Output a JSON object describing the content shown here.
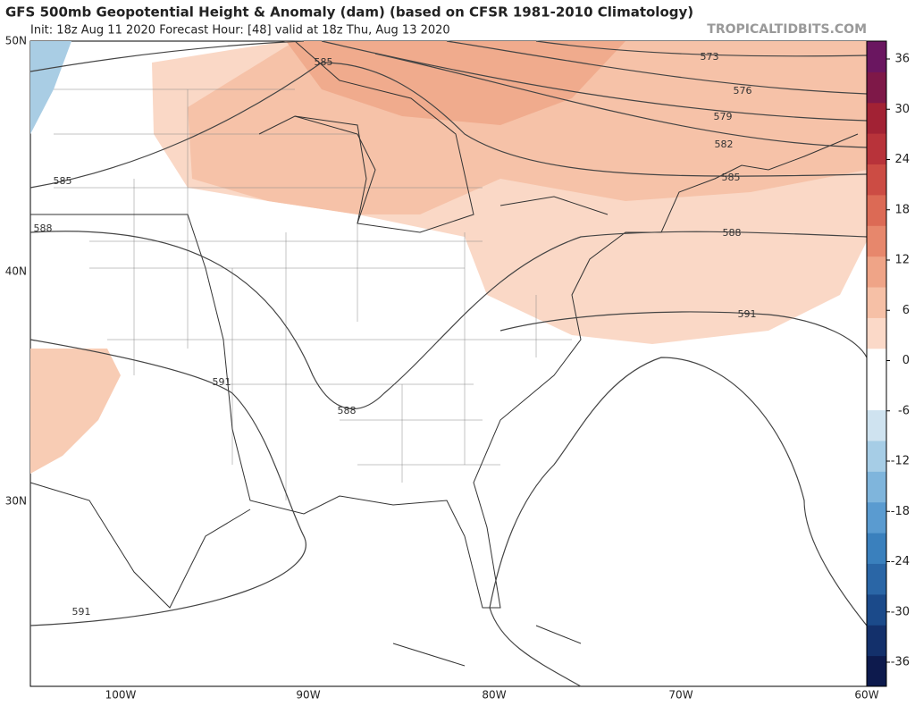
{
  "header": {
    "title": "GFS 500mb Geopotential Height & Anomaly (dam) (based on CFSR 1981-2010 Climatology)",
    "subtitle": "Init: 18z Aug 11 2020   Forecast Hour: [48]   valid at 18z Thu, Aug 13 2020",
    "watermark": "TROPICALTIDBITS.COM"
  },
  "map": {
    "lat_labels": [
      "50N",
      "40N",
      "30N"
    ],
    "lon_labels": [
      "100W",
      "90W",
      "80W",
      "70W",
      "60W"
    ],
    "contour_labels": [
      "573",
      "576",
      "579",
      "582",
      "585",
      "588",
      "591",
      "585",
      "585",
      "588",
      "591",
      "588",
      "591"
    ]
  },
  "colorbar": {
    "ticks": [
      36,
      30,
      24,
      18,
      12,
      6,
      0,
      -6,
      -12,
      -18,
      -24,
      -30,
      -36
    ],
    "colors": [
      "#0d1a4d",
      "#13306b",
      "#1b4a8a",
      "#2a66a6",
      "#3a80bd",
      "#5a9bd0",
      "#7fb5dc",
      "#a6cde6",
      "#cfe3f0",
      "#ffffff",
      "#ffffff",
      "#fbd9c8",
      "#f6c0a6",
      "#efa487",
      "#e7876c",
      "#dc6a55",
      "#cc4c44",
      "#b8333a",
      "#a22234",
      "#7e1848",
      "#6a1660"
    ]
  }
}
